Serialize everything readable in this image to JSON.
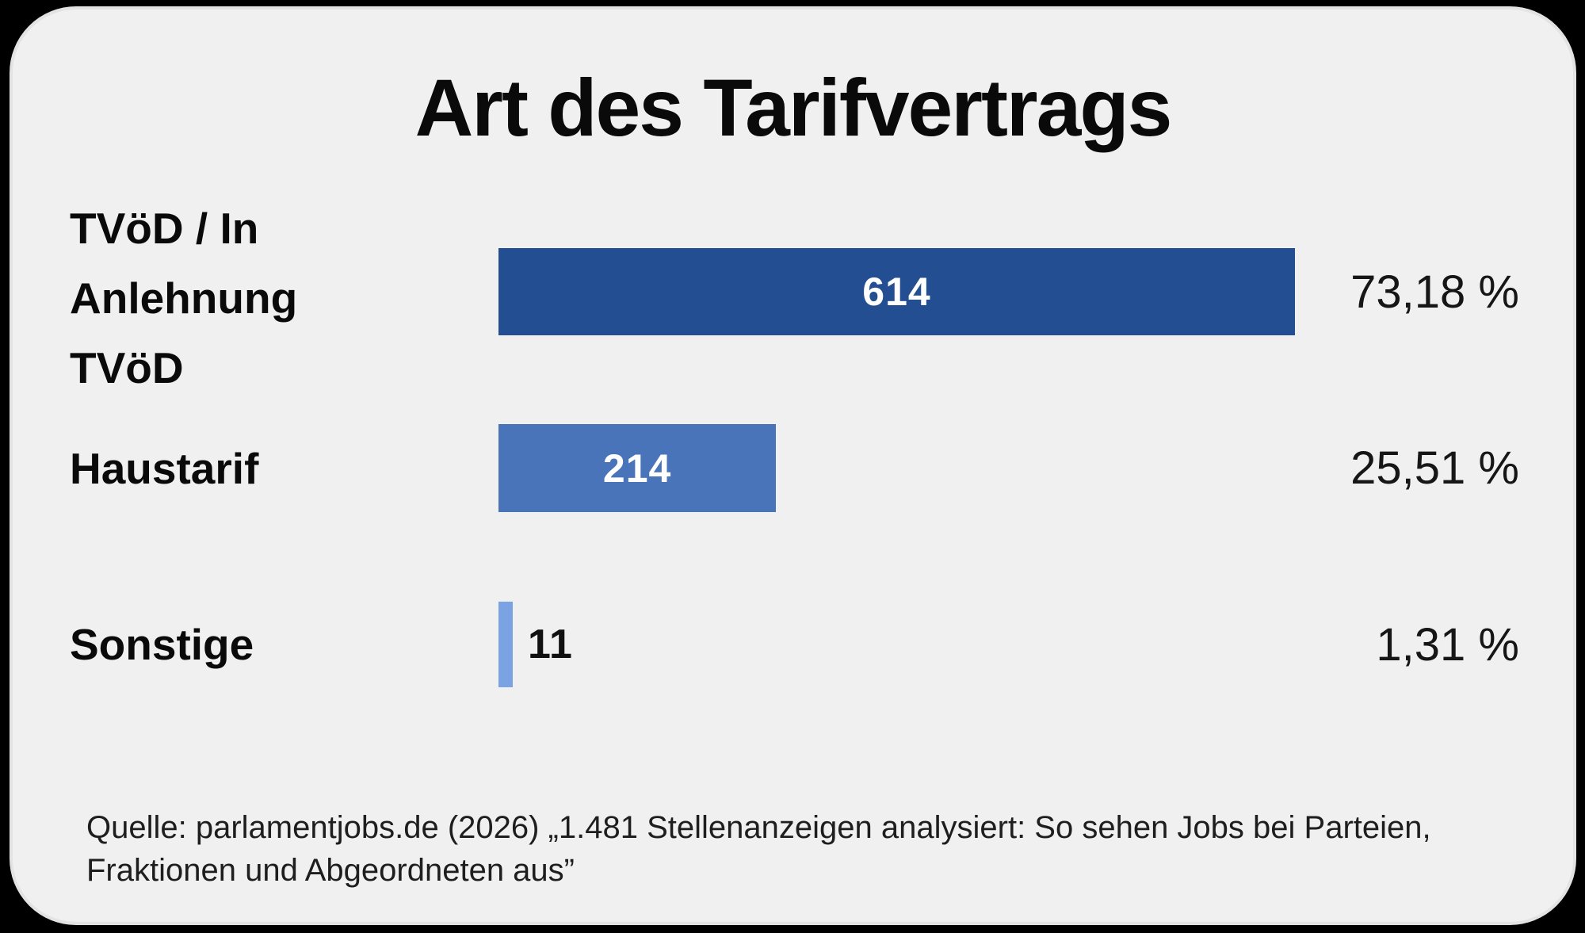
{
  "title": "Art des Tarifvertrags",
  "chart_data": {
    "type": "bar",
    "orientation": "horizontal",
    "title": "Art des Tarifvertrags",
    "categories": [
      "TVöD / In Anlehnung TVöD",
      "Haustarif",
      "Sonstige"
    ],
    "values": [
      614,
      214,
      11
    ],
    "percentages": [
      73.18,
      25.51,
      1.31
    ],
    "percent_labels": [
      "73,18 %",
      "25,51 %",
      "1,31 %"
    ],
    "bar_colors": [
      "#234f92",
      "#4a74b9",
      "#7ba3e3"
    ],
    "xlim": [
      0,
      614
    ],
    "grid": false,
    "legend": false
  },
  "rows": [
    {
      "label": "TVöD / In\nAnlehnung\nTVöD",
      "value": "614",
      "pct": "73,18 %"
    },
    {
      "label": "Haustarif",
      "value": "214",
      "pct": "25,51 %"
    },
    {
      "label": "Sonstige",
      "value": "11",
      "pct": "1,31 %"
    }
  ],
  "footer": {
    "line1": "Quelle: parlamentjobs.de (2026) „1.481 Stellenanzeigen analysiert: So sehen Jobs bei Parteien,",
    "line2": "Fraktionen und Abgeordneten aus”"
  },
  "colors": {
    "outer_background": "#000000",
    "card_background": "#f0f0f1",
    "card_border": "#e3e3e4",
    "bar_primary": "#234f92",
    "bar_secondary": "#4a74b9",
    "bar_tertiary": "#7ba3e3",
    "text": "#0a0a0a",
    "bar_value_text": "#ffffff"
  }
}
